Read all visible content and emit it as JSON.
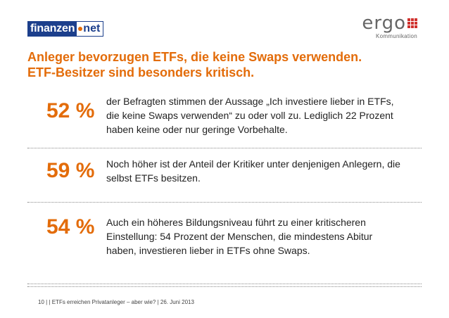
{
  "header": {
    "logo_left": {
      "brand": "finanzen",
      "tld": "net",
      "color": "#1c3f8c"
    },
    "logo_right": {
      "word": "ergo",
      "subtitle": "Kommunikation"
    }
  },
  "slide": {
    "title": "Anleger bevorzugen ETFs, die keine Swaps verwenden. ETF-Besitzer sind besonders kritisch.",
    "accent_color": "#e36c0a",
    "stats": [
      {
        "value": "52 %",
        "text": "der Befragten stimmen der Aussage „Ich investiere lieber in ETFs, die keine Swaps verwenden“ zu oder voll zu. Lediglich 22 Prozent haben keine oder nur geringe Vorbehalte."
      },
      {
        "value": "59 %",
        "text": "Noch höher ist der Anteil der Kritiker unter denjenigen Anlegern, die selbst ETFs besitzen."
      },
      {
        "value": "54 %",
        "text": "Auch ein höheres Bildungsniveau führt zu einer kritischeren Einstellung: 54 Prozent der Menschen, die mindestens Abitur haben, investieren lieber in ETFs ohne Swaps."
      }
    ]
  },
  "footer": {
    "text": "10  |  | ETFs erreichen Privatanleger – aber wie? | 26. Juni 2013"
  }
}
